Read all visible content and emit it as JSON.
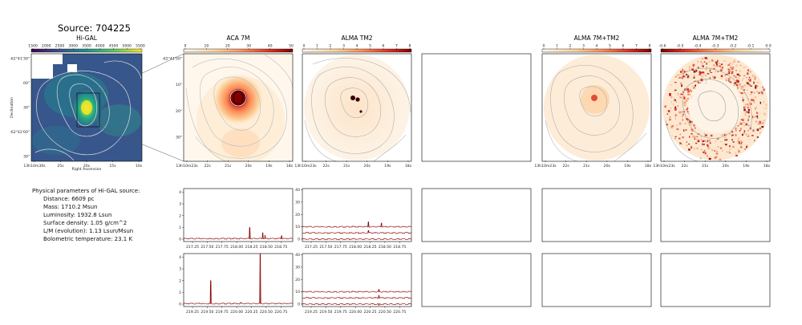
{
  "figure": {
    "source_title": "Source: 704225",
    "panels": {
      "higal": {
        "title": "Hi-GAL",
        "cbar_ticks": [
          "1500",
          "2000",
          "2500",
          "3000",
          "3500",
          "4000",
          "4500",
          "5000",
          "5500"
        ],
        "ytick_labels": [
          "-62°41'30\"",
          "00\"",
          "30\"",
          "-62°42'00\"",
          "30\""
        ],
        "xtick_labels": [
          "13h10m30s",
          "25s",
          "20s",
          "15s",
          "10s"
        ],
        "xlabel": "Right Ascension",
        "ylabel": "Declination"
      },
      "aca": {
        "title": "ACA 7M",
        "cbar_ticks": [
          "0",
          "10",
          "20",
          "30",
          "40",
          "50"
        ],
        "ytick_labels": [
          "-62°41'50\"",
          "10\"",
          "20\"",
          "30\""
        ],
        "xtick_labels": [
          "13h10m23s",
          "22s",
          "21s",
          "20s",
          "19s",
          "18s"
        ]
      },
      "tm2": {
        "title": "ALMA TM2",
        "cbar_ticks": [
          "0",
          "1",
          "2",
          "3",
          "4",
          "5",
          "6",
          "7",
          "8"
        ],
        "xtick_labels": [
          "13h10m23s",
          "22s",
          "21s",
          "20s",
          "19s",
          "18s"
        ]
      },
      "tm2_7m": {
        "title": "ALMA 7M+TM2",
        "cbar_ticks": [
          "0",
          "1",
          "2",
          "3",
          "4",
          "5",
          "6",
          "7",
          "8"
        ],
        "xtick_labels": [
          "13h10m23s",
          "22s",
          "21s",
          "20s",
          "19s",
          "18s"
        ]
      },
      "tm2_7m_b": {
        "title": "ALMA 7M+TM2",
        "cbar_ticks": [
          "-0.6",
          "-0.5",
          "-0.4",
          "-0.3",
          "-0.2",
          "-0.1",
          "0.0"
        ],
        "xtick_labels": [
          "13h10m23s",
          "22s",
          "21s",
          "20s",
          "19s",
          "18s"
        ]
      }
    },
    "physical": {
      "header": "Physical parameters of Hi-GAL source:",
      "lines": [
        "Distance: 6609 pc",
        "Mass: 1710.2 Msun",
        "Luminosity: 1932.8 Lsun",
        "Surface density: 1.05 g/cm^2",
        "L/M (evolution): 1.13 Lsun/Msun",
        "Bolometric temperature: 23.1 K"
      ]
    },
    "spectra": {
      "row1_yticks_aca": [
        "0",
        "1",
        "2",
        "3",
        "4"
      ],
      "row1_yticks_tm2": [
        "0",
        "10",
        "20",
        "30",
        "40"
      ],
      "row1_xticks": [
        "217.25",
        "217.50",
        "217.75",
        "218.00",
        "218.25",
        "218.50",
        "218.75"
      ],
      "row2_yticks_aca": [
        "0",
        "1",
        "2",
        "3",
        "4"
      ],
      "row2_yticks_tm2": [
        "0",
        "10",
        "20",
        "30",
        "40"
      ],
      "row2_xticks": [
        "219.25",
        "219.50",
        "219.75",
        "220.00",
        "220.25",
        "220.50",
        "220.75"
      ]
    }
  },
  "chart_data": {
    "type": "line",
    "title": "Source: 704225",
    "colors": {
      "spectrum": "#8b0000",
      "contour": "#b8b8b8",
      "frame": "#000000"
    },
    "spectral_window_1": {
      "x_range": [
        217.1,
        218.95
      ],
      "aca_7m": {
        "ylim": [
          -0.2,
          4.3
        ],
        "baseline": 0.05,
        "peaks": [
          {
            "x": 218.22,
            "y": 1.0
          },
          {
            "x": 218.44,
            "y": 0.55
          },
          {
            "x": 218.48,
            "y": 0.35
          },
          {
            "x": 218.76,
            "y": 0.3
          }
        ]
      },
      "alma_tm2": {
        "ylim": [
          -2,
          41
        ],
        "traces": [
          {
            "offset": 10,
            "peaks": [
              {
                "x": 218.22,
                "y": 14
              },
              {
                "x": 218.44,
                "y": 13
              }
            ]
          },
          {
            "offset": 5,
            "peaks": [
              {
                "x": 218.22,
                "y": 7
              }
            ]
          },
          {
            "offset": 0,
            "peaks": []
          }
        ]
      }
    },
    "spectral_window_2": {
      "x_range": [
        219.1,
        220.95
      ],
      "aca_7m": {
        "ylim": [
          -0.2,
          4.3
        ],
        "baseline": 0.05,
        "peaks": [
          {
            "x": 219.56,
            "y": 2.0
          },
          {
            "x": 220.4,
            "y": 4.3
          },
          {
            "x": 220.07,
            "y": 0.15
          }
        ]
      },
      "alma_tm2": {
        "ylim": [
          -2,
          41
        ],
        "traces": [
          {
            "offset": 10,
            "peaks": [
              {
                "x": 220.4,
                "y": 12
              }
            ]
          },
          {
            "offset": 5,
            "peaks": [
              {
                "x": 220.4,
                "y": 7
              }
            ]
          },
          {
            "offset": 0,
            "peaks": [
              {
                "x": 220.4,
                "y": -1
              }
            ]
          }
        ]
      }
    }
  }
}
